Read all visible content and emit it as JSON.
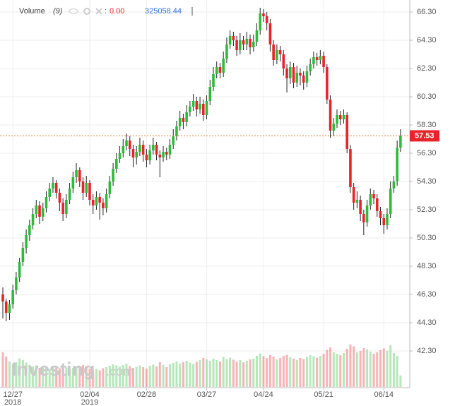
{
  "chart_data": {
    "type": "candlestick",
    "volume_label": "Volume",
    "volume_period": "(9)",
    "volume_ma_value": "0.00",
    "volume_last": "325058.44",
    "watermark": "Investing",
    "watermark_suffix": ".com",
    "last_price": 57.53,
    "last_price_label": "57.53",
    "up_color": "#2dbb3a",
    "down_color": "#e8242b",
    "volume_color": "#e0a0a0",
    "ylim": [
      39.75,
      67.15
    ],
    "yticks": [
      {
        "value": 42.3,
        "label": "42.30"
      },
      {
        "value": 44.3,
        "label": "44.30"
      },
      {
        "value": 46.3,
        "label": "46.30"
      },
      {
        "value": 48.3,
        "label": "48.30"
      },
      {
        "value": 50.3,
        "label": "50.30"
      },
      {
        "value": 52.3,
        "label": "52.30"
      },
      {
        "value": 54.3,
        "label": "54.30"
      },
      {
        "value": 56.3,
        "label": "56.30"
      },
      {
        "value": 58.3,
        "label": "58.30"
      },
      {
        "value": 60.3,
        "label": "60.30"
      },
      {
        "value": 62.3,
        "label": "62.30"
      },
      {
        "value": 64.3,
        "label": "64.30"
      },
      {
        "value": 66.3,
        "label": "66.30"
      }
    ],
    "xticks": [
      {
        "value": 3,
        "label": "12/27"
      },
      {
        "value": 26,
        "label": "02/04"
      },
      {
        "value": 43,
        "label": "02/28"
      },
      {
        "value": 61,
        "label": "03/27"
      },
      {
        "value": 78,
        "label": "04/24"
      },
      {
        "value": 96,
        "label": "05/21"
      },
      {
        "value": 114,
        "label": "06/14"
      }
    ],
    "xtick_years": [
      {
        "value": 3,
        "label": "2018"
      },
      {
        "value": 26,
        "label": "2019"
      }
    ],
    "grid": true,
    "candles": [
      [
        46.3,
        46.8,
        44.6,
        45.8
      ],
      [
        45.8,
        46.0,
        44.4,
        45.0
      ],
      [
        45.0,
        45.9,
        44.5,
        45.6
      ],
      [
        45.6,
        47.0,
        45.3,
        46.6
      ],
      [
        46.6,
        47.9,
        46.3,
        47.5
      ],
      [
        47.5,
        48.9,
        47.2,
        48.6
      ],
      [
        48.6,
        50.0,
        48.3,
        49.6
      ],
      [
        49.6,
        50.9,
        49.2,
        50.5
      ],
      [
        50.5,
        51.6,
        50.1,
        51.2
      ],
      [
        51.2,
        52.4,
        50.9,
        52.0
      ],
      [
        52.0,
        53.0,
        51.7,
        52.6
      ],
      [
        52.6,
        52.9,
        51.3,
        51.8
      ],
      [
        51.8,
        52.8,
        51.5,
        52.4
      ],
      [
        52.4,
        53.6,
        52.1,
        53.2
      ],
      [
        53.2,
        54.2,
        52.9,
        53.8
      ],
      [
        53.8,
        54.6,
        53.5,
        54.2
      ],
      [
        54.2,
        54.4,
        53.1,
        53.5
      ],
      [
        53.5,
        53.8,
        52.2,
        52.8
      ],
      [
        52.8,
        53.1,
        51.5,
        52.0
      ],
      [
        52.0,
        53.4,
        51.7,
        53.0
      ],
      [
        53.0,
        54.2,
        52.7,
        53.8
      ],
      [
        53.8,
        55.0,
        53.5,
        54.6
      ],
      [
        54.6,
        55.6,
        54.2,
        55.1
      ],
      [
        55.1,
        55.3,
        53.9,
        54.3
      ],
      [
        54.3,
        54.6,
        53.0,
        53.5
      ],
      [
        53.5,
        54.7,
        53.2,
        54.2
      ],
      [
        54.2,
        54.4,
        52.6,
        53.0
      ],
      [
        53.0,
        53.4,
        52.0,
        52.6
      ],
      [
        52.6,
        53.6,
        52.3,
        53.2
      ],
      [
        53.2,
        53.5,
        51.6,
        52.8
      ],
      [
        52.8,
        53.1,
        51.9,
        52.4
      ],
      [
        52.4,
        53.8,
        52.1,
        53.4
      ],
      [
        53.4,
        54.7,
        53.1,
        54.3
      ],
      [
        54.3,
        55.6,
        54.0,
        55.2
      ],
      [
        55.2,
        56.3,
        54.9,
        55.9
      ],
      [
        55.9,
        56.8,
        55.6,
        56.3
      ],
      [
        56.3,
        57.3,
        56.0,
        56.8
      ],
      [
        56.8,
        57.7,
        56.5,
        57.2
      ],
      [
        57.2,
        57.5,
        56.1,
        56.6
      ],
      [
        56.6,
        56.9,
        55.3,
        56.0
      ],
      [
        56.0,
        56.8,
        55.5,
        56.4
      ],
      [
        56.4,
        57.4,
        56.1,
        56.9
      ],
      [
        56.9,
        57.2,
        55.7,
        56.2
      ],
      [
        56.2,
        56.6,
        55.3,
        55.8
      ],
      [
        55.8,
        56.9,
        55.5,
        56.5
      ],
      [
        56.5,
        57.4,
        56.2,
        56.9
      ],
      [
        56.9,
        57.1,
        55.8,
        56.2
      ],
      [
        56.2,
        56.5,
        54.6,
        56.0
      ],
      [
        56.0,
        56.8,
        55.7,
        56.4
      ],
      [
        56.4,
        56.7,
        55.8,
        56.2
      ],
      [
        56.2,
        57.3,
        55.9,
        56.9
      ],
      [
        56.9,
        58.0,
        56.6,
        57.5
      ],
      [
        57.5,
        58.6,
        57.2,
        58.2
      ],
      [
        58.2,
        59.3,
        57.9,
        58.8
      ],
      [
        58.8,
        59.1,
        58.0,
        58.5
      ],
      [
        58.5,
        59.7,
        58.2,
        59.2
      ],
      [
        59.2,
        60.0,
        58.9,
        59.6
      ],
      [
        59.6,
        60.5,
        59.3,
        60.0
      ],
      [
        60.0,
        60.3,
        58.9,
        59.4
      ],
      [
        59.4,
        60.3,
        59.1,
        59.8
      ],
      [
        59.8,
        60.1,
        58.6,
        59.0
      ],
      [
        59.0,
        60.4,
        58.7,
        60.0
      ],
      [
        60.0,
        61.5,
        59.7,
        61.0
      ],
      [
        61.0,
        62.4,
        60.7,
        61.9
      ],
      [
        61.9,
        62.8,
        61.6,
        62.4
      ],
      [
        62.4,
        62.7,
        61.6,
        62.0
      ],
      [
        62.0,
        63.5,
        61.7,
        63.0
      ],
      [
        63.0,
        64.5,
        62.7,
        64.0
      ],
      [
        64.0,
        65.0,
        63.7,
        64.6
      ],
      [
        64.6,
        64.9,
        63.9,
        64.3
      ],
      [
        64.3,
        64.6,
        63.2,
        63.6
      ],
      [
        63.6,
        64.8,
        63.3,
        64.3
      ],
      [
        64.3,
        64.6,
        63.6,
        64.0
      ],
      [
        64.0,
        64.9,
        63.6,
        64.4
      ],
      [
        64.4,
        64.7,
        63.3,
        63.8
      ],
      [
        63.8,
        64.7,
        63.5,
        64.2
      ],
      [
        64.2,
        65.5,
        63.9,
        65.0
      ],
      [
        65.0,
        66.6,
        64.7,
        66.2
      ],
      [
        66.2,
        66.5,
        65.6,
        66.0
      ],
      [
        66.0,
        66.3,
        65.0,
        65.5
      ],
      [
        65.5,
        65.8,
        63.5,
        64.0
      ],
      [
        64.0,
        64.3,
        62.5,
        62.9
      ],
      [
        62.9,
        64.0,
        62.6,
        63.6
      ],
      [
        63.6,
        63.9,
        62.8,
        63.3
      ],
      [
        63.3,
        63.6,
        61.8,
        62.3
      ],
      [
        62.3,
        62.6,
        60.6,
        61.6
      ],
      [
        61.6,
        62.8,
        61.2,
        62.4
      ],
      [
        62.4,
        62.7,
        60.9,
        61.3
      ],
      [
        61.3,
        62.5,
        61.0,
        62.0
      ],
      [
        62.0,
        62.3,
        61.1,
        61.8
      ],
      [
        61.8,
        62.1,
        60.8,
        61.3
      ],
      [
        61.3,
        62.5,
        61.0,
        62.1
      ],
      [
        62.1,
        63.0,
        61.8,
        62.6
      ],
      [
        62.6,
        63.5,
        62.3,
        63.1
      ],
      [
        63.1,
        63.4,
        62.5,
        62.9
      ],
      [
        62.9,
        63.6,
        62.6,
        63.2
      ],
      [
        63.2,
        63.5,
        62.0,
        62.4
      ],
      [
        62.4,
        62.6,
        59.8,
        60.1
      ],
      [
        60.1,
        60.4,
        57.4,
        57.9
      ],
      [
        57.9,
        58.8,
        57.5,
        58.4
      ],
      [
        58.4,
        59.4,
        58.1,
        59.0
      ],
      [
        59.0,
        59.3,
        58.3,
        58.7
      ],
      [
        58.7,
        59.4,
        58.4,
        59.0
      ],
      [
        59.0,
        59.2,
        56.3,
        56.6
      ],
      [
        56.6,
        56.9,
        53.5,
        53.9
      ],
      [
        53.9,
        54.2,
        52.3,
        52.8
      ],
      [
        52.8,
        53.6,
        52.4,
        53.0
      ],
      [
        53.0,
        53.3,
        51.5,
        52.0
      ],
      [
        52.0,
        52.3,
        50.5,
        51.4
      ],
      [
        51.4,
        53.0,
        51.1,
        52.6
      ],
      [
        52.6,
        53.8,
        52.3,
        53.4
      ],
      [
        53.4,
        53.7,
        52.7,
        53.1
      ],
      [
        53.1,
        53.4,
        51.8,
        52.2
      ],
      [
        52.2,
        52.5,
        51.2,
        51.7
      ],
      [
        51.7,
        52.0,
        50.6,
        51.2
      ],
      [
        51.2,
        52.4,
        50.9,
        52.0
      ],
      [
        52.0,
        54.3,
        51.7,
        53.8
      ],
      [
        53.8,
        54.7,
        53.5,
        54.3
      ],
      [
        54.3,
        57.2,
        54.0,
        56.7
      ],
      [
        56.7,
        58.0,
        56.4,
        57.53
      ]
    ],
    "volumes": [
      980000,
      860000,
      720000,
      650000,
      700000,
      810000,
      760000,
      690000,
      620000,
      580000,
      610000,
      540000,
      590000,
      560000,
      520000,
      600000,
      570000,
      530000,
      610000,
      550000,
      500000,
      540000,
      580000,
      560000,
      620000,
      590000,
      520000,
      480000,
      510000,
      470000,
      530000,
      560000,
      600000,
      640000,
      610000,
      580000,
      620000,
      660000,
      590000,
      540000,
      570000,
      610000,
      560000,
      520000,
      600000,
      630000,
      580000,
      700000,
      620000,
      560000,
      640000,
      680000,
      720000,
      660000,
      700000,
      740000,
      690000,
      650000,
      710000,
      760000,
      820000,
      780000,
      740000,
      800000,
      760000,
      720000,
      850000,
      790000,
      830000,
      770000,
      720000,
      760000,
      700000,
      740000,
      780000,
      800000,
      880000,
      950000,
      870000,
      820000,
      900000,
      860000,
      780000,
      820000,
      880000,
      910000,
      840000,
      800000,
      760000,
      820000,
      790000,
      850000,
      900000,
      870000,
      830000,
      880000,
      940000,
      1050000,
      1120000,
      980000,
      940000,
      900000,
      960000,
      1080000,
      1200000,
      1150000,
      980000,
      1020000,
      1100000,
      1060000,
      1000000,
      940000,
      980000,
      1040000,
      1090000,
      1020000,
      1180000,
      960000,
      880000,
      325058.44
    ]
  }
}
